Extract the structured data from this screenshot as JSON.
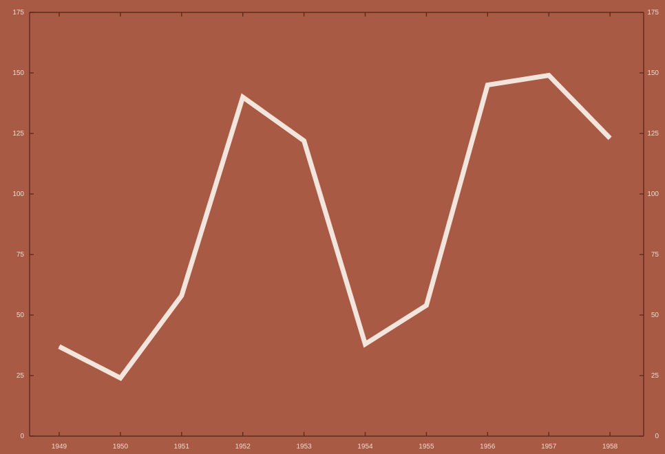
{
  "chart_data": {
    "type": "line",
    "title": "",
    "xlabel": "",
    "ylabel": "",
    "x": [
      "1949",
      "1950",
      "1951",
      "1952",
      "1953",
      "1954",
      "1955",
      "1956",
      "1957",
      "1958"
    ],
    "series": [
      {
        "values": [
          37,
          24,
          58,
          140,
          122,
          38,
          54,
          145,
          149,
          123
        ]
      }
    ],
    "ylim": [
      0,
      175
    ],
    "yticks": [
      0,
      25,
      50,
      75,
      100,
      125,
      150,
      175
    ],
    "right_axis_ticks": [
      0,
      25,
      50,
      75,
      100,
      125,
      150,
      175
    ],
    "grid": false,
    "colors": {
      "background": "#a85a45",
      "line": "#f3e4dc",
      "axis": "#5e2a1c",
      "tick_label": "#f0d8cc"
    }
  }
}
